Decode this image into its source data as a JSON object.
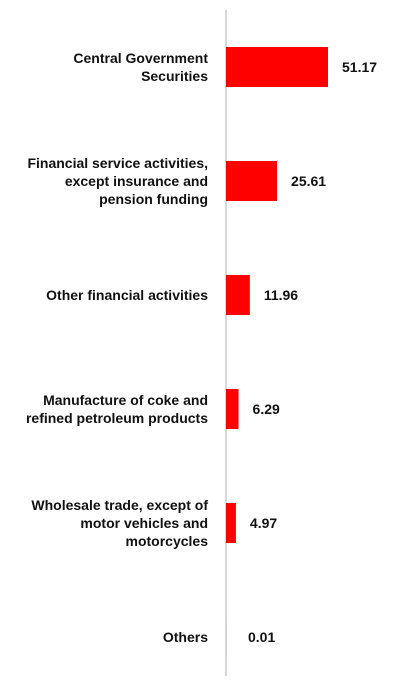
{
  "chart_data": {
    "type": "bar",
    "orientation": "horizontal",
    "categories": [
      [
        "Central Government",
        "Securities"
      ],
      [
        "Financial service activities,",
        "except insurance and",
        "pension funding"
      ],
      [
        "Other financial activities"
      ],
      [
        "Manufacture of coke and",
        "refined petroleum products"
      ],
      [
        "Wholesale trade, except of",
        "motor vehicles and",
        "motorcycles"
      ],
      [
        "Others"
      ]
    ],
    "values": [
      51.17,
      25.61,
      11.96,
      6.29,
      4.97,
      0.01
    ],
    "value_labels": [
      "51.17",
      "25.61",
      "11.96",
      "6.29",
      "4.97",
      "0.01"
    ],
    "bar_color": "#ff0000",
    "axis_color": "#cccccc",
    "grid": false,
    "legend": "none"
  }
}
